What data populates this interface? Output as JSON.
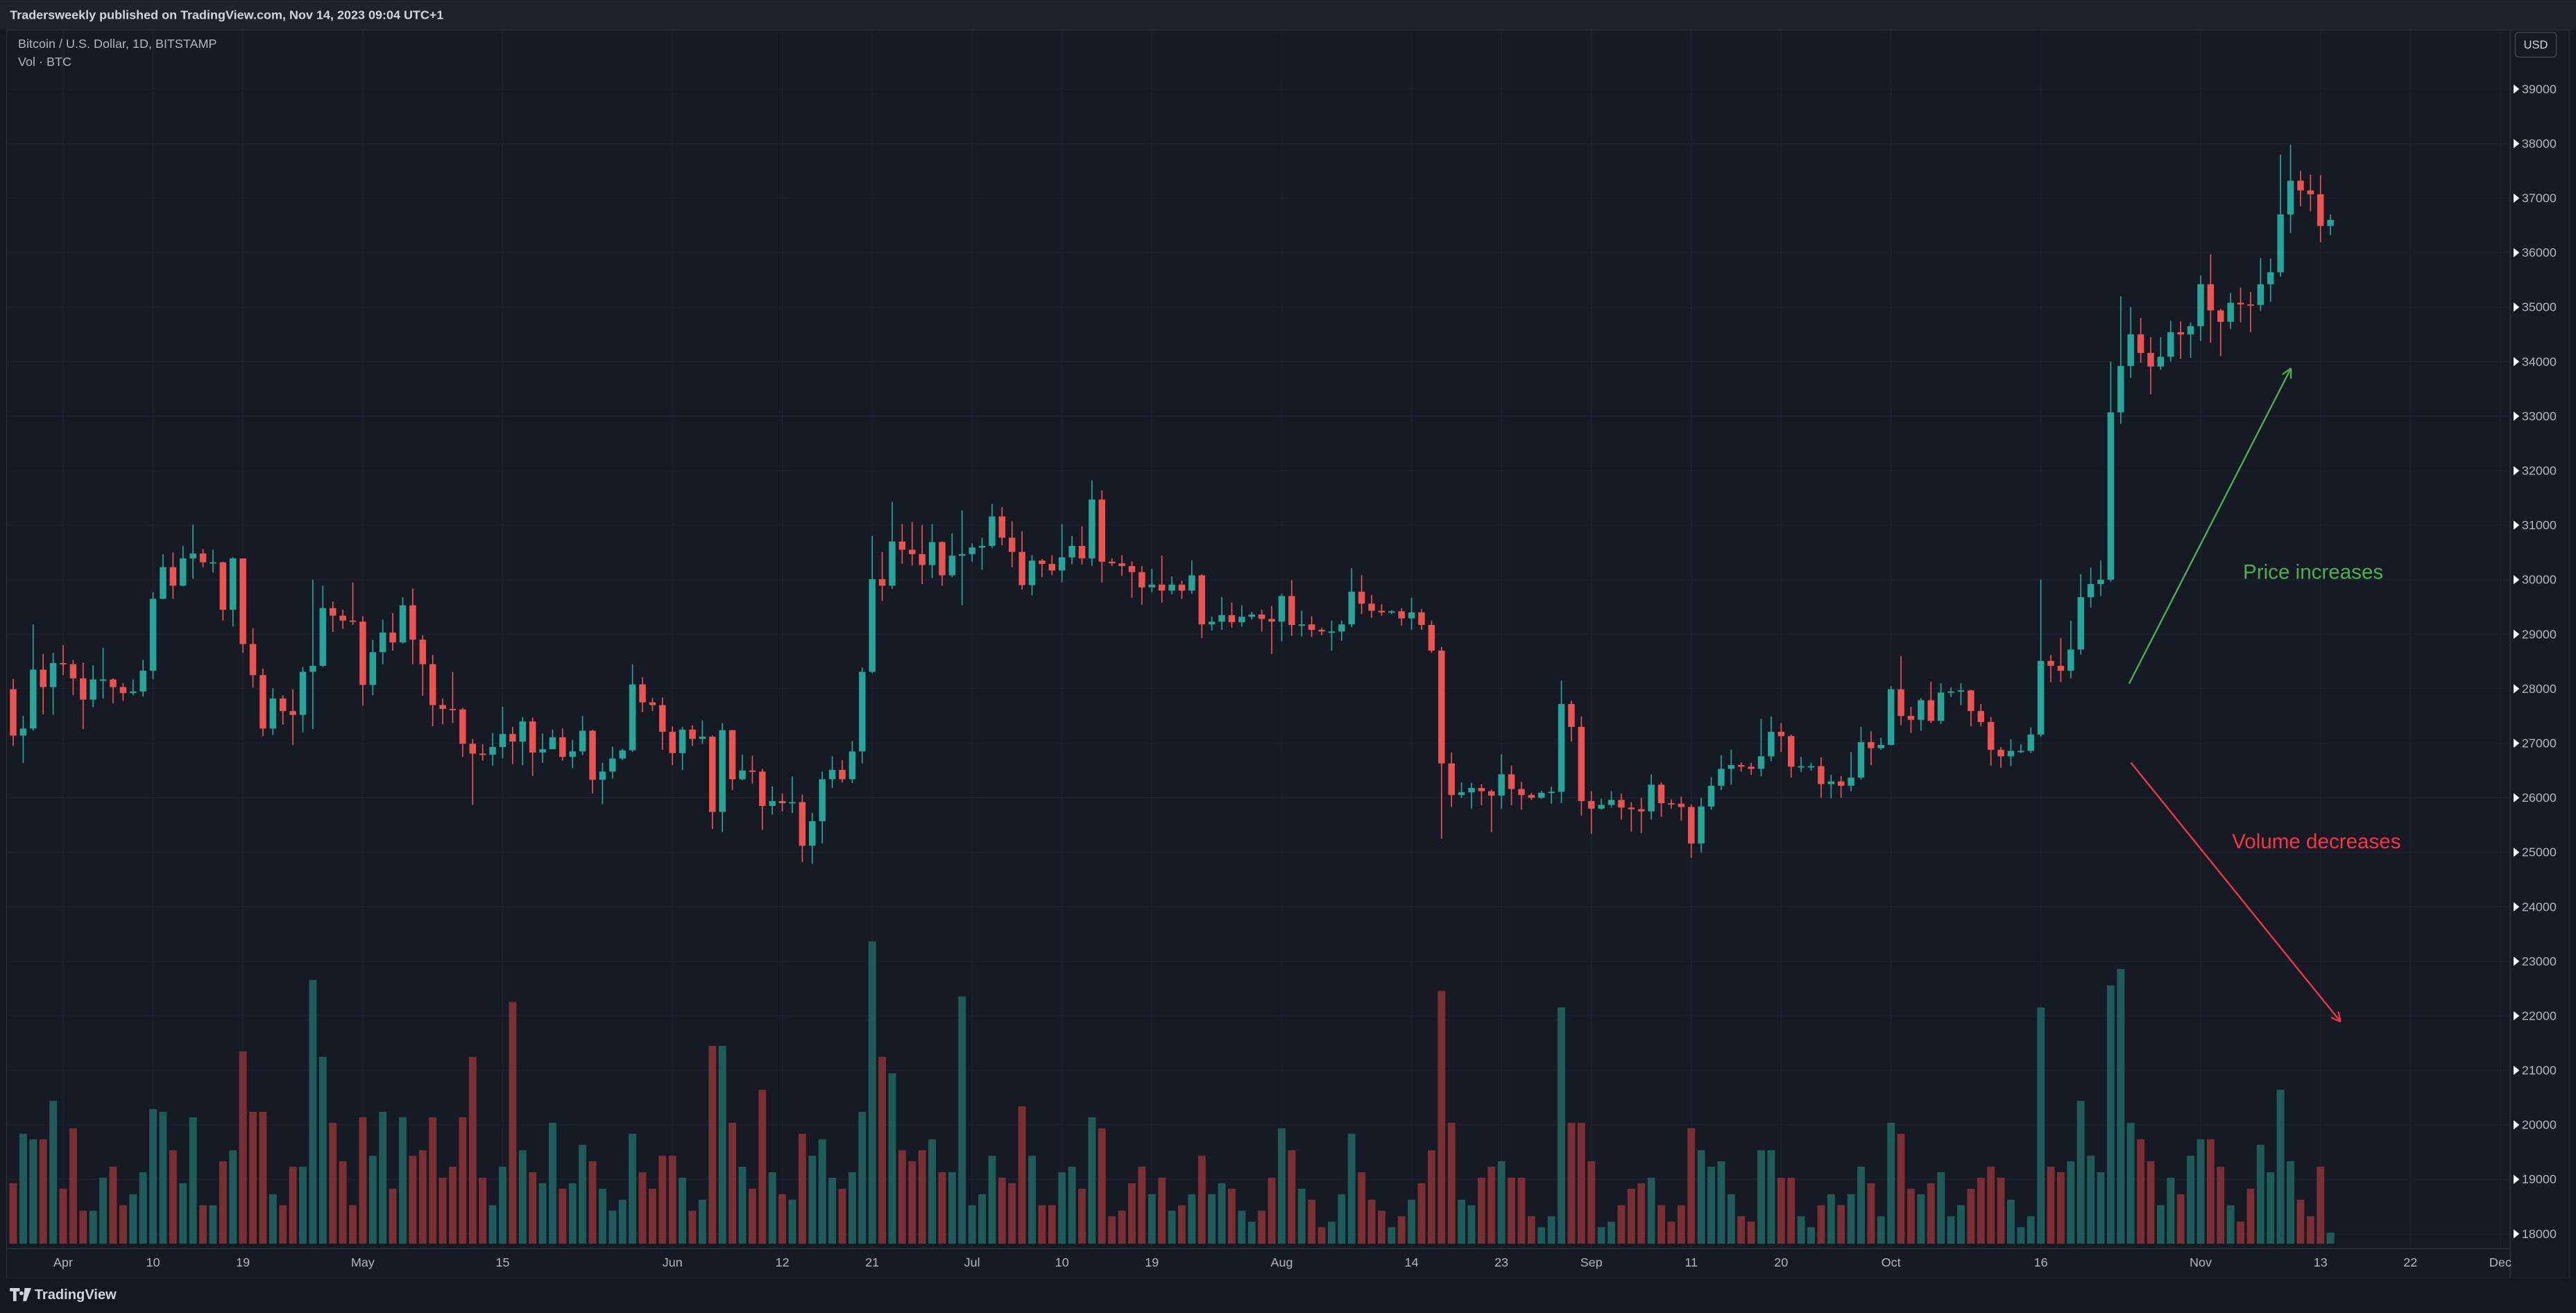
{
  "header": {
    "text": "Tradersweekly published on TradingView.com, Nov 14, 2023 09:04 UTC+1"
  },
  "footer": {
    "brand": "TradingView"
  },
  "chart_data": {
    "type": "candlestick",
    "title": "Bitcoin / U.S. Dollar, 1D, BITSTAMP",
    "volume_label": "Vol · BTC",
    "currency": "USD",
    "up_color": "#26a69a",
    "down_color": "#ef5350",
    "volume_up_color": "#1d5c5b",
    "volume_down_color": "#7b2f33",
    "grid": true,
    "annotations": [
      {
        "text": "Price increases",
        "color": "#4caf50"
      },
      {
        "text": "Volume decreases",
        "color": "#f23645"
      }
    ],
    "xlim": [
      -0.5,
      250
    ],
    "xticks": [
      {
        "value": 5,
        "label": "Apr"
      },
      {
        "value": 14,
        "label": "10"
      },
      {
        "value": 23,
        "label": "19"
      },
      {
        "value": 35,
        "label": "May"
      },
      {
        "value": 49,
        "label": "15"
      },
      {
        "value": 66,
        "label": "Jun"
      },
      {
        "value": 77,
        "label": "12"
      },
      {
        "value": 86,
        "label": "21"
      },
      {
        "value": 96,
        "label": "Jul"
      },
      {
        "value": 105,
        "label": "10"
      },
      {
        "value": 114,
        "label": "19"
      },
      {
        "value": 127,
        "label": "Aug"
      },
      {
        "value": 140,
        "label": "14"
      },
      {
        "value": 149,
        "label": "23"
      },
      {
        "value": 158,
        "label": "Sep"
      },
      {
        "value": 168,
        "label": "11"
      },
      {
        "value": 177,
        "label": "20"
      },
      {
        "value": 188,
        "label": "Oct"
      },
      {
        "value": 203,
        "label": "16"
      },
      {
        "value": 219,
        "label": "Nov"
      },
      {
        "value": 231,
        "label": "13"
      },
      {
        "value": 240,
        "label": "22"
      },
      {
        "value": 249,
        "label": "Dec"
      }
    ],
    "ylim": [
      17820,
      40025
    ],
    "yticks": [
      18000,
      19000,
      20000,
      21000,
      22000,
      23000,
      24000,
      25000,
      26000,
      27000,
      28000,
      29000,
      30000,
      31000,
      32000,
      33000,
      34000,
      35000,
      36000,
      37000,
      38000,
      39000
    ],
    "open": [
      27990,
      27140,
      27270,
      28350,
      28030,
      28470,
      28450,
      28190,
      27800,
      28170,
      28170,
      28030,
      27920,
      27950,
      28330,
      29650,
      30230,
      29890,
      30390,
      30480,
      30320,
      30320,
      29450,
      30390,
      28820,
      28250,
      27270,
      27820,
      27590,
      27520,
      28310,
      28420,
      29480,
      29340,
      29250,
      29230,
      28070,
      28670,
      29030,
      28850,
      29530,
      28900,
      28450,
      27700,
      27630,
      27620,
      26990,
      26810,
      26790,
      26930,
      27170,
      27030,
      27400,
      26830,
      26890,
      27110,
      26750,
      26850,
      27230,
      26330,
      26480,
      26720,
      26870,
      28080,
      27750,
      27700,
      27210,
      26820,
      27250,
      27080,
      27120,
      25740,
      27240,
      26340,
      26500,
      26480,
      25850,
      25940,
      25900,
      25920,
      25120,
      25570,
      26340,
      26510,
      26340,
      26850,
      28310,
      30010,
      29890,
      30700,
      30550,
      30470,
      30270,
      30690,
      30080,
      30440,
      30470,
      30590,
      30620,
      31160,
      30770,
      30510,
      29900,
      30350,
      30290,
      30170,
      30410,
      30620,
      30390,
      31470,
      30330,
      30300,
      30250,
      30140,
      29860,
      29910,
      29800,
      29910,
      29800,
      30080,
      29180,
      29230,
      29350,
      29220,
      29320,
      29360,
      29280,
      29230,
      29700,
      29170,
      29180,
      29080,
      29050,
      29050,
      29180,
      29780,
      29560,
      29430,
      29400,
      29420,
      29290,
      29400,
      29170,
      28700,
      26630,
      26050,
      26100,
      26180,
      26120,
      26040,
      26430,
      26160,
      26050,
      26000,
      26090,
      26110,
      27720,
      27300,
      25940,
      25800,
      25870,
      25960,
      25820,
      25790,
      25750,
      26240,
      25900,
      25890,
      25830,
      25160,
      25840,
      26220,
      26530,
      26600,
      26570,
      26530,
      26760,
      27210,
      27130,
      26570,
      26580,
      26580,
      26250,
      26300,
      26220,
      26370,
      27020,
      26910,
      26970,
      27990,
      27500,
      27430,
      27790,
      27410,
      27930,
      27950,
      27970,
      27590,
      27390,
      26880,
      26760,
      26860,
      26860,
      27160,
      28510,
      28420,
      28330,
      28720,
      29680,
      29920,
      30000,
      33070,
      33920,
      34500,
      34160,
      33910,
      34090,
      34540,
      34500,
      34650,
      35420,
      34940,
      34730,
      35080,
      35050,
      35040,
      35420,
      35640,
      36700,
      37320,
      37140,
      37070,
      36490
    ],
    "high": [
      28180,
      27500,
      29180,
      28640,
      28660,
      28800,
      28530,
      28480,
      28430,
      28750,
      28190,
      28100,
      28170,
      28530,
      29770,
      30470,
      30500,
      30620,
      31010,
      30560,
      30550,
      30330,
      30410,
      30390,
      29110,
      28370,
      28010,
      27880,
      27990,
      28400,
      30000,
      29890,
      29600,
      29450,
      29950,
      29330,
      28900,
      29270,
      29390,
      29680,
      29840,
      28980,
      28620,
      27820,
      28310,
      27650,
      27080,
      26980,
      27190,
      27670,
      27300,
      27480,
      27470,
      27180,
      27250,
      27270,
      27060,
      27500,
      27250,
      26640,
      26940,
      26900,
      28450,
      28210,
      27830,
      27840,
      27310,
      27300,
      27330,
      27420,
      27140,
      27370,
      27240,
      26790,
      26770,
      26530,
      26210,
      26080,
      26390,
      26060,
      25720,
      26480,
      26760,
      26690,
      27040,
      28390,
      30800,
      30510,
      31430,
      31020,
      31060,
      31000,
      31020,
      30700,
      30850,
      31270,
      30670,
      30770,
      31390,
      31330,
      31070,
      30890,
      30450,
      30380,
      30450,
      31020,
      30800,
      30980,
      31820,
      31640,
      30390,
      30450,
      30340,
      30250,
      30200,
      30440,
      30060,
      29980,
      30350,
      30100,
      29320,
      29680,
      29580,
      29530,
      29410,
      29450,
      29520,
      29740,
      29990,
      29430,
      29330,
      29120,
      29250,
      29250,
      30210,
      30080,
      29720,
      29550,
      29440,
      29480,
      29670,
      29460,
      29250,
      28770,
      26830,
      26280,
      26270,
      26250,
      26150,
      26800,
      26590,
      26290,
      26090,
      26130,
      26200,
      28150,
      27780,
      27490,
      26120,
      25980,
      26120,
      26080,
      25920,
      26000,
      26430,
      26280,
      25970,
      26020,
      25880,
      26000,
      26380,
      26780,
      26880,
      26650,
      26640,
      27450,
      27490,
      27370,
      27160,
      26750,
      26640,
      26740,
      26420,
      26400,
      26840,
      27300,
      27220,
      27100,
      28050,
      28600,
      27670,
      27830,
      28130,
      28100,
      28030,
      28100,
      27980,
      27720,
      27480,
      26930,
      27070,
      26980,
      27290,
      30000,
      28620,
      28930,
      29250,
      30100,
      30220,
      30350,
      34000,
      35200,
      35000,
      34800,
      34450,
      34450,
      34750,
      34740,
      34720,
      35580,
      35970,
      34970,
      35260,
      35360,
      35280,
      35900,
      35890,
      37800,
      37980,
      37500,
      37430,
      37420,
      36700
    ],
    "low": [
      26950,
      26640,
      27230,
      27530,
      27520,
      28250,
      27880,
      27260,
      27660,
      27820,
      27730,
      27780,
      27880,
      27860,
      28170,
      29640,
      29650,
      29880,
      30020,
      30230,
      30130,
      29250,
      29140,
      28660,
      28020,
      27130,
      27150,
      27340,
      26970,
      27200,
      27260,
      28400,
      29040,
      29100,
      29170,
      27690,
      27880,
      28450,
      28700,
      28830,
      28450,
      27870,
      27310,
      27350,
      27370,
      26750,
      25870,
      26680,
      26590,
      26720,
      26620,
      26600,
      26400,
      26640,
      26890,
      26680,
      26540,
      26780,
      26080,
      25880,
      26350,
      26690,
      26840,
      27570,
      27590,
      26880,
      26600,
      26510,
      26950,
      26990,
      25430,
      25370,
      26140,
      26320,
      26260,
      25410,
      25690,
      25750,
      25720,
      24820,
      24790,
      25160,
      26180,
      26280,
      26270,
      26630,
      28290,
      29610,
      29830,
      30290,
      30260,
      29920,
      30030,
      29890,
      30050,
      29530,
      30330,
      30180,
      30580,
      30630,
      30230,
      29820,
      29710,
      30050,
      30080,
      29950,
      30280,
      30280,
      30250,
      29950,
      30250,
      30070,
      29670,
      29540,
      29770,
      29580,
      29730,
      29650,
      29740,
      28930,
      29070,
      29080,
      29120,
      29140,
      29270,
      29050,
      28640,
      28870,
      28970,
      28960,
      28950,
      28980,
      28700,
      28880,
      29130,
      29370,
      29300,
      29340,
      29370,
      29160,
      29080,
      29080,
      28660,
      25250,
      25830,
      26000,
      25800,
      25860,
      25370,
      25800,
      25860,
      25780,
      25960,
      25980,
      25890,
      25900,
      27030,
      25670,
      25340,
      25780,
      25820,
      25600,
      25380,
      25350,
      25600,
      25650,
      25800,
      25580,
      24900,
      25000,
      25780,
      26140,
      26240,
      26480,
      26420,
      26390,
      26670,
      26840,
      26370,
      26470,
      26500,
      26000,
      25990,
      26000,
      26120,
      26330,
      26600,
      26880,
      26960,
      27330,
      27190,
      27230,
      27370,
      27350,
      27850,
      27700,
      27310,
      27310,
      26590,
      26550,
      26580,
      26820,
      26820,
      27120,
      28120,
      28120,
      28190,
      28630,
      29490,
      29700,
      29960,
      32860,
      33700,
      33980,
      33400,
      33850,
      34000,
      34050,
      34070,
      34380,
      34350,
      34100,
      34600,
      34720,
      34540,
      34930,
      35100,
      35560,
      36360,
      36850,
      36760,
      36190,
      36320
    ],
    "close": [
      27140,
      27270,
      28350,
      28030,
      28470,
      28450,
      28190,
      27800,
      28170,
      28170,
      28030,
      27920,
      27950,
      28330,
      29650,
      30230,
      29890,
      30390,
      30480,
      30320,
      30320,
      29450,
      30390,
      28820,
      28250,
      27270,
      27820,
      27590,
      27520,
      28310,
      28420,
      29480,
      29340,
      29250,
      29230,
      28070,
      28670,
      29030,
      28850,
      29530,
      28900,
      28450,
      27700,
      27630,
      27620,
      26990,
      26810,
      26790,
      26930,
      27170,
      27030,
      27400,
      26830,
      26890,
      27110,
      26750,
      26850,
      27230,
      26330,
      26480,
      26720,
      26870,
      28080,
      27750,
      27700,
      27210,
      26820,
      27250,
      27080,
      27120,
      25740,
      27240,
      26340,
      26500,
      26480,
      25850,
      25940,
      25900,
      25920,
      25120,
      25570,
      26340,
      26510,
      26340,
      26850,
      28310,
      30010,
      29890,
      30700,
      30550,
      30470,
      30270,
      30690,
      30080,
      30440,
      30470,
      30590,
      30620,
      31160,
      30770,
      30510,
      29900,
      30350,
      30290,
      30170,
      30410,
      30620,
      30390,
      31470,
      30330,
      30300,
      30250,
      30140,
      29860,
      29910,
      29800,
      29910,
      29800,
      30080,
      29180,
      29230,
      29350,
      29220,
      29320,
      29360,
      29280,
      29230,
      29700,
      29170,
      29180,
      29080,
      29050,
      29050,
      29180,
      29780,
      29560,
      29430,
      29400,
      29420,
      29290,
      29400,
      29170,
      28700,
      26630,
      26050,
      26100,
      26180,
      26120,
      26040,
      26430,
      26160,
      26050,
      26000,
      26090,
      26110,
      27720,
      27300,
      25940,
      25800,
      25870,
      25960,
      25820,
      25790,
      25750,
      26240,
      25900,
      25890,
      25830,
      25160,
      25840,
      26220,
      26530,
      26600,
      26570,
      26530,
      26760,
      27210,
      27130,
      26570,
      26580,
      26580,
      26250,
      26300,
      26220,
      26370,
      27020,
      26910,
      26970,
      27990,
      27500,
      27430,
      27790,
      27410,
      27930,
      27950,
      27970,
      27590,
      27390,
      26880,
      26760,
      26860,
      26860,
      27160,
      28510,
      28420,
      28330,
      28720,
      29680,
      29920,
      30000,
      33070,
      33920,
      34500,
      34160,
      33910,
      34090,
      34540,
      34500,
      34650,
      35420,
      34940,
      34730,
      35080,
      35050,
      35040,
      35420,
      35640,
      36700,
      37320,
      37140,
      37070,
      36490,
      36600
    ],
    "volume": [
      1100,
      2000,
      1900,
      1900,
      2600,
      1000,
      2100,
      600,
      600,
      1200,
      1400,
      700,
      900,
      1300,
      2450,
      2400,
      1700,
      1100,
      2300,
      700,
      700,
      1500,
      1700,
      3500,
      2400,
      2400,
      900,
      700,
      1400,
      1400,
      4800,
      3400,
      2200,
      1500,
      700,
      2300,
      1600,
      2400,
      1000,
      2300,
      1600,
      1700,
      2300,
      1200,
      1400,
      2300,
      3400,
      1200,
      700,
      1400,
      4400,
      1700,
      1300,
      1100,
      2200,
      1000,
      1100,
      1800,
      1500,
      1000,
      600,
      800,
      2000,
      1300,
      1000,
      1600,
      1600,
      1200,
      600,
      800,
      3600,
      3600,
      2200,
      1400,
      1000,
      2800,
      1300,
      900,
      800,
      2000,
      1600,
      1900,
      1200,
      1000,
      1300,
      2400,
      5500,
      3400,
      3100,
      1700,
      1500,
      1700,
      1900,
      1300,
      1300,
      4500,
      700,
      900,
      1600,
      1200,
      1100,
      2500,
      1600,
      700,
      700,
      1300,
      1400,
      1000,
      2300,
      2100,
      500,
      600,
      1100,
      1400,
      900,
      1200,
      600,
      700,
      900,
      1600,
      900,
      1100,
      1000,
      600,
      400,
      600,
      1200,
      2100,
      1700,
      1000,
      800,
      300,
      400,
      900,
      2000,
      1300,
      800,
      600,
      300,
      500,
      800,
      1100,
      1700,
      4600,
      2200,
      800,
      700,
      1200,
      1400,
      1500,
      1200,
      1200,
      500,
      300,
      500,
      4300,
      2200,
      2200,
      1500,
      300,
      400,
      700,
      1000,
      1100,
      1200,
      700,
      400,
      700,
      2100,
      1700,
      1400,
      1500,
      900,
      500,
      400,
      1700,
      1700,
      1200,
      1200,
      500,
      300,
      700,
      900,
      700,
      900,
      1400,
      1100,
      500,
      2200,
      2000,
      1000,
      900,
      1100,
      1300,
      500,
      700,
      1000,
      1200,
      1400,
      1200,
      800,
      300,
      500,
      4300,
      1400,
      1300,
      1500,
      2600,
      1600,
      1300,
      4700,
      5000,
      2200,
      1900,
      1500,
      700,
      1200,
      900,
      1600,
      1900,
      1900,
      1400,
      700,
      400,
      1000,
      1800,
      1300,
      2800,
      1500,
      800,
      500,
      1400,
      200
    ]
  }
}
